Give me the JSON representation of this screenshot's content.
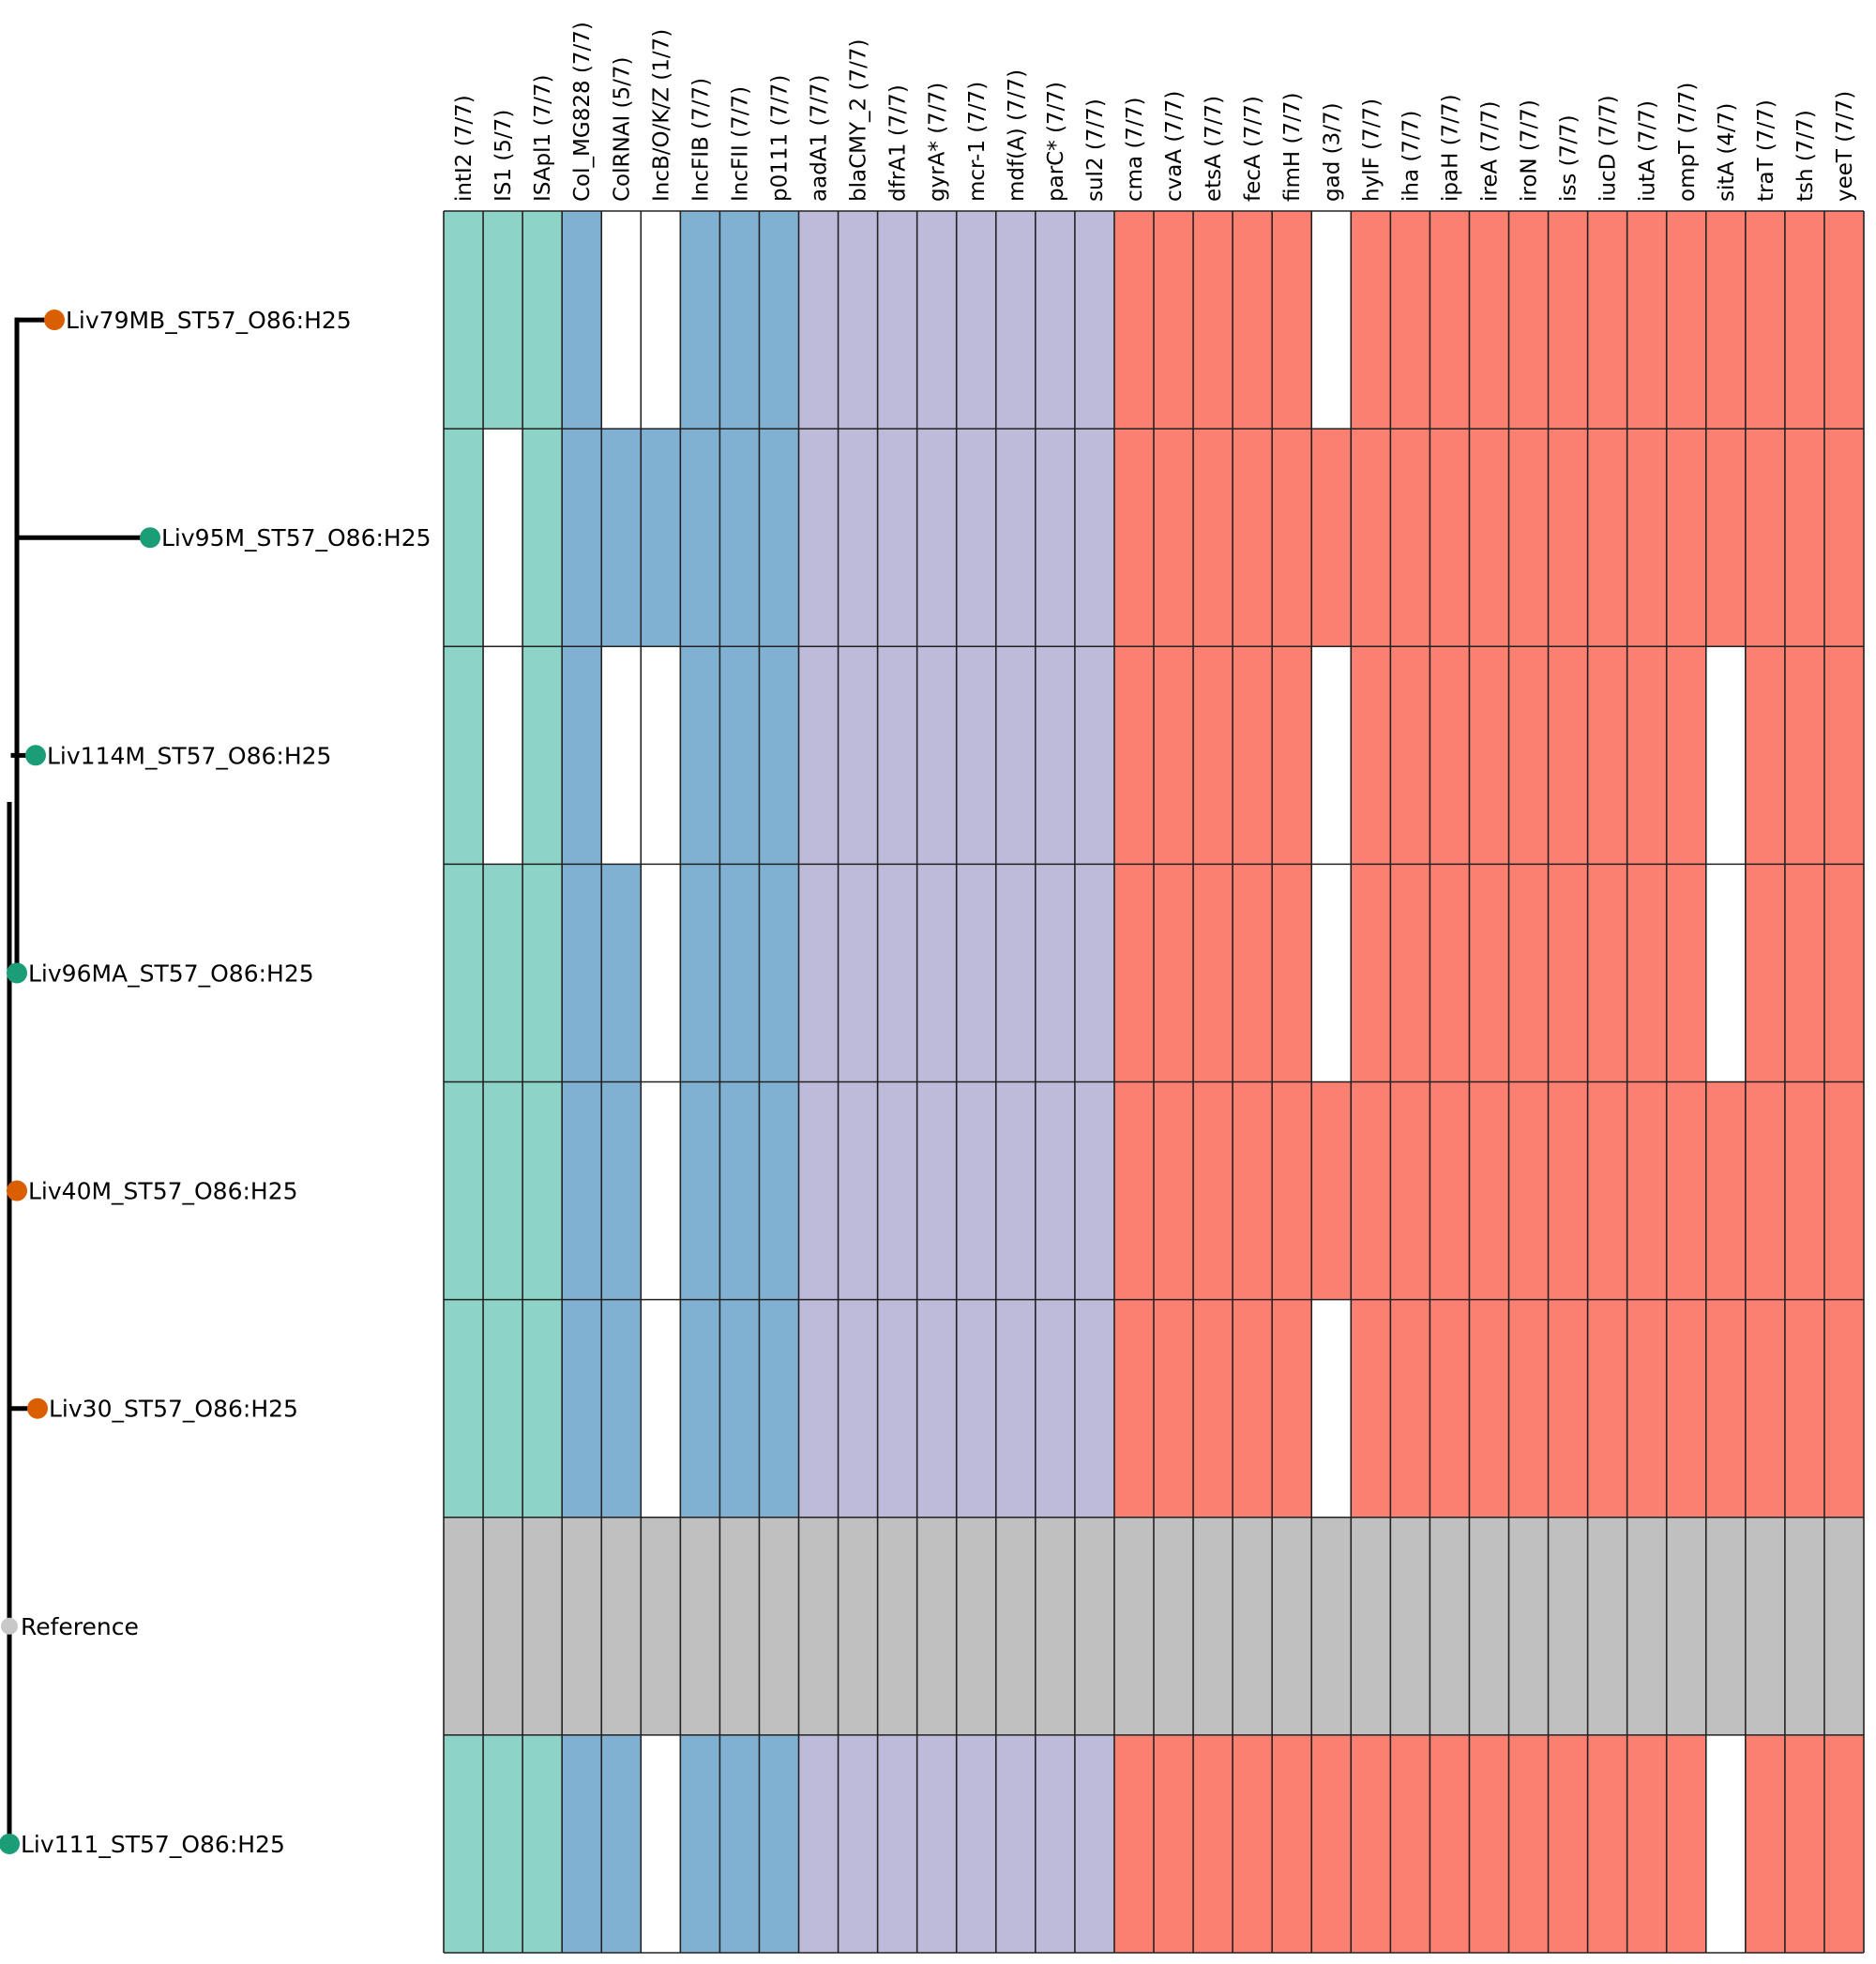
{
  "chart_data": {
    "type": "heatmap",
    "title": "",
    "columns": [
      {
        "label": "intI2 (7/7)",
        "group": "integron_is"
      },
      {
        "label": "IS1 (5/7)",
        "group": "integron_is"
      },
      {
        "label": "ISApl1 (7/7)",
        "group": "integron_is"
      },
      {
        "label": "Col_MG828 (7/7)",
        "group": "plasmid"
      },
      {
        "label": "ColRNAI (5/7)",
        "group": "plasmid"
      },
      {
        "label": "IncB/O/K/Z (1/7)",
        "group": "plasmid"
      },
      {
        "label": "IncFIB (7/7)",
        "group": "plasmid"
      },
      {
        "label": "IncFII (7/7)",
        "group": "plasmid"
      },
      {
        "label": "p0111 (7/7)",
        "group": "plasmid"
      },
      {
        "label": "aadA1 (7/7)",
        "group": "resistance"
      },
      {
        "label": "blaCMY_2 (7/7)",
        "group": "resistance"
      },
      {
        "label": "dfrA1 (7/7)",
        "group": "resistance"
      },
      {
        "label": "gyrA* (7/7)",
        "group": "resistance"
      },
      {
        "label": "mcr-1 (7/7)",
        "group": "resistance"
      },
      {
        "label": "mdf(A) (7/7)",
        "group": "resistance"
      },
      {
        "label": "parC* (7/7)",
        "group": "resistance"
      },
      {
        "label": "sul2 (7/7)",
        "group": "resistance"
      },
      {
        "label": "cma (7/7)",
        "group": "virulence"
      },
      {
        "label": "cvaA (7/7)",
        "group": "virulence"
      },
      {
        "label": "etsA (7/7)",
        "group": "virulence"
      },
      {
        "label": "fecA (7/7)",
        "group": "virulence"
      },
      {
        "label": "fimH (7/7)",
        "group": "virulence"
      },
      {
        "label": "gad (3/7)",
        "group": "virulence"
      },
      {
        "label": "hylF (7/7)",
        "group": "virulence"
      },
      {
        "label": "iha (7/7)",
        "group": "virulence"
      },
      {
        "label": "ipaH (7/7)",
        "group": "virulence"
      },
      {
        "label": "ireA (7/7)",
        "group": "virulence"
      },
      {
        "label": "iroN (7/7)",
        "group": "virulence"
      },
      {
        "label": "iss (7/7)",
        "group": "virulence"
      },
      {
        "label": "iucD (7/7)",
        "group": "virulence"
      },
      {
        "label": "iutA (7/7)",
        "group": "virulence"
      },
      {
        "label": "ompT (7/7)",
        "group": "virulence"
      },
      {
        "label": "sitA (4/7)",
        "group": "virulence"
      },
      {
        "label": "traT (7/7)",
        "group": "virulence"
      },
      {
        "label": "tsh (7/7)",
        "group": "virulence"
      },
      {
        "label": "yeeT (7/7)",
        "group": "virulence"
      }
    ],
    "rows": [
      {
        "label": "Liv79MB_ST57_O86:H25",
        "tip_color": "orange",
        "presence": [
          1,
          1,
          1,
          1,
          0,
          0,
          1,
          1,
          1,
          1,
          1,
          1,
          1,
          1,
          1,
          1,
          1,
          1,
          1,
          1,
          1,
          1,
          0,
          1,
          1,
          1,
          1,
          1,
          1,
          1,
          1,
          1,
          1,
          1,
          1,
          1
        ]
      },
      {
        "label": "Liv95M_ST57_O86:H25",
        "tip_color": "green",
        "presence": [
          1,
          0,
          1,
          1,
          1,
          1,
          1,
          1,
          1,
          1,
          1,
          1,
          1,
          1,
          1,
          1,
          1,
          1,
          1,
          1,
          1,
          1,
          1,
          1,
          1,
          1,
          1,
          1,
          1,
          1,
          1,
          1,
          1,
          1,
          1,
          1
        ]
      },
      {
        "label": "Liv114M_ST57_O86:H25",
        "tip_color": "green",
        "presence": [
          1,
          0,
          1,
          1,
          0,
          0,
          1,
          1,
          1,
          1,
          1,
          1,
          1,
          1,
          1,
          1,
          1,
          1,
          1,
          1,
          1,
          1,
          0,
          1,
          1,
          1,
          1,
          1,
          1,
          1,
          1,
          1,
          0,
          1,
          1,
          1
        ]
      },
      {
        "label": "Liv96MA_ST57_O86:H25",
        "tip_color": "green",
        "presence": [
          1,
          1,
          1,
          1,
          1,
          0,
          1,
          1,
          1,
          1,
          1,
          1,
          1,
          1,
          1,
          1,
          1,
          1,
          1,
          1,
          1,
          1,
          0,
          1,
          1,
          1,
          1,
          1,
          1,
          1,
          1,
          1,
          0,
          1,
          1,
          1
        ]
      },
      {
        "label": "Liv40M_ST57_O86:H25",
        "tip_color": "orange",
        "presence": [
          1,
          1,
          1,
          1,
          1,
          0,
          1,
          1,
          1,
          1,
          1,
          1,
          1,
          1,
          1,
          1,
          1,
          1,
          1,
          1,
          1,
          1,
          1,
          1,
          1,
          1,
          1,
          1,
          1,
          1,
          1,
          1,
          1,
          1,
          1,
          1
        ]
      },
      {
        "label": "Liv30_ST57_O86:H25",
        "tip_color": "orange",
        "presence": [
          1,
          1,
          1,
          1,
          1,
          0,
          1,
          1,
          1,
          1,
          1,
          1,
          1,
          1,
          1,
          1,
          1,
          1,
          1,
          1,
          1,
          1,
          0,
          1,
          1,
          1,
          1,
          1,
          1,
          1,
          1,
          1,
          1,
          1,
          1,
          1
        ]
      },
      {
        "label": "Reference",
        "tip_color": "grey",
        "is_reference": true,
        "presence": [
          1,
          1,
          1,
          1,
          1,
          1,
          1,
          1,
          1,
          1,
          1,
          1,
          1,
          1,
          1,
          1,
          1,
          1,
          1,
          1,
          1,
          1,
          1,
          1,
          1,
          1,
          1,
          1,
          1,
          1,
          1,
          1,
          1,
          1,
          1,
          1
        ]
      },
      {
        "label": "Liv111_ST57_O86:H25",
        "tip_color": "green",
        "presence": [
          1,
          1,
          1,
          1,
          1,
          0,
          1,
          1,
          1,
          1,
          1,
          1,
          1,
          1,
          1,
          1,
          1,
          1,
          1,
          1,
          1,
          1,
          1,
          1,
          1,
          1,
          1,
          1,
          1,
          1,
          1,
          1,
          0,
          1,
          1,
          1
        ]
      }
    ],
    "colors": {
      "integron_is": "#8dd3c7",
      "plasmid": "#80b1d3",
      "resistance": "#bebada",
      "virulence": "#fb8072",
      "reference": "#c0c0c0",
      "absent": "#ffffff",
      "tip_orange": "#d95f02",
      "tip_green": "#1b9e77",
      "tip_grey": "#c8c8c8"
    }
  }
}
